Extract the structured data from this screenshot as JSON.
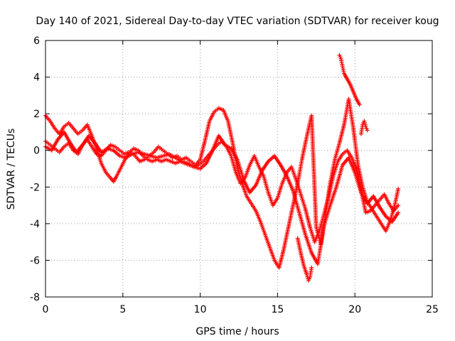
{
  "chart_data": {
    "type": "scatter",
    "title": "Day 140 of 2021, Sidereal Day-to-day VTEC variation (SDTVAR) for receiver koug",
    "xlabel": "GPS time / hours",
    "ylabel": "SDTVAR / TECUs",
    "xlim": [
      0,
      25
    ],
    "ylim": [
      -8,
      6
    ],
    "xticks": [
      0,
      5,
      10,
      15,
      20,
      25
    ],
    "yticks": [
      -8,
      -6,
      -4,
      -2,
      0,
      2,
      4,
      6
    ],
    "grid": true,
    "marker": "+",
    "color": "#ff0000",
    "series": [
      {
        "x": [
          0.0,
          0.3,
          0.6,
          0.9,
          1.2,
          1.5,
          1.8,
          2.1,
          2.4,
          2.7,
          3.0,
          3.3,
          3.6,
          3.9,
          4.2,
          4.4,
          4.6,
          4.9,
          5.2,
          5.5,
          5.8,
          6.1,
          6.4,
          6.7,
          7.0,
          7.3,
          7.6,
          7.9,
          8.2,
          8.5,
          8.8,
          9.1,
          9.4,
          9.7,
          10.0,
          10.3,
          10.6,
          10.9,
          11.2,
          11.5,
          11.8,
          12.1,
          12.4,
          12.7,
          13.0,
          13.3,
          13.6,
          13.9,
          14.2,
          14.5,
          14.8,
          15.1,
          15.4,
          15.7,
          16.0,
          16.3,
          16.6,
          16.9,
          17.2,
          17.5,
          17.8,
          18.1,
          18.4,
          18.7,
          19.0,
          19.3,
          19.6,
          19.9,
          20.2,
          20.5,
          20.8,
          21.1,
          21.4,
          21.7,
          22.0,
          22.3,
          22.6,
          22.8
        ],
        "y": [
          1.9,
          1.6,
          1.2,
          0.9,
          1.3,
          1.5,
          1.2,
          0.9,
          1.1,
          1.4,
          0.8,
          0.1,
          -0.7,
          -1.2,
          -1.5,
          -1.7,
          -1.4,
          -0.9,
          -0.4,
          -0.1,
          -0.3,
          -0.6,
          -0.5,
          -0.3,
          -0.1,
          0.2,
          0.0,
          -0.2,
          -0.4,
          -0.3,
          -0.5,
          -0.4,
          -0.6,
          -0.8,
          -0.5,
          0.5,
          1.6,
          2.1,
          2.3,
          2.2,
          1.6,
          0.4,
          -0.9,
          -1.8,
          -2.5,
          -2.9,
          -3.3,
          -3.9,
          -4.6,
          -5.3,
          -6.0,
          -6.4,
          -5.4,
          -4.2,
          -3.0,
          -1.8,
          -0.4,
          0.8,
          1.9,
          -4.2,
          -5.1,
          -3.5,
          -1.8,
          -0.5,
          0.4,
          1.4,
          2.8,
          1.2,
          -0.8,
          -2.0,
          -2.8,
          -3.2,
          -3.6,
          -4.0,
          -4.4,
          -3.8,
          -2.9,
          -2.1
        ]
      },
      {
        "x": [
          0.0,
          0.3,
          0.6,
          0.9,
          1.2,
          1.5,
          1.8,
          2.1,
          2.4,
          2.7,
          3.0,
          3.3,
          3.6,
          3.9,
          4.2,
          4.5,
          4.8,
          5.1,
          5.4,
          5.7,
          6.0,
          6.3,
          6.6,
          6.9,
          7.2,
          7.5,
          7.8,
          8.1,
          8.4,
          8.7,
          9.0,
          9.3,
          9.6,
          9.9,
          10.2,
          10.5,
          10.8,
          11.1,
          11.4,
          11.7,
          12.0,
          12.3,
          12.6,
          12.9,
          13.2,
          13.5,
          13.8,
          14.1,
          14.4,
          14.7,
          15.0,
          15.3,
          15.6,
          15.9,
          16.2,
          16.5,
          16.8,
          17.1,
          17.4,
          17.7,
          18.0,
          18.3,
          18.6,
          18.9,
          19.2,
          19.5,
          19.8,
          20.1,
          20.4,
          20.7,
          21.0,
          21.3,
          21.6,
          21.9,
          22.2,
          22.5,
          22.8
        ],
        "y": [
          0.5,
          0.3,
          0.1,
          -0.1,
          0.2,
          0.4,
          0.0,
          -0.2,
          0.3,
          0.6,
          0.2,
          -0.2,
          -0.3,
          0.0,
          0.3,
          0.2,
          0.0,
          -0.2,
          -0.1,
          0.1,
          0.0,
          -0.3,
          -0.5,
          -0.6,
          -0.5,
          -0.6,
          -0.5,
          -0.6,
          -0.7,
          -0.6,
          -0.7,
          -0.8,
          -0.9,
          -0.8,
          -0.6,
          -0.3,
          0.0,
          0.3,
          0.5,
          0.2,
          -0.3,
          -1.2,
          -1.8,
          -1.5,
          -0.8,
          -0.3,
          -0.9,
          -1.4,
          -2.3,
          -3.0,
          -2.6,
          -1.8,
          -1.2,
          -0.9,
          -1.6,
          -2.4,
          -3.2,
          -4.2,
          -5.0,
          -4.4,
          -3.5,
          -2.5,
          -1.4,
          -0.6,
          -0.2,
          0.0,
          -0.4,
          -1.0,
          -2.2,
          -3.4,
          -3.3,
          -3.0,
          -2.7,
          -2.4,
          -2.9,
          -3.3,
          -3.0
        ]
      },
      {
        "x": [
          0.0,
          0.4,
          0.8,
          1.2,
          1.6,
          2.0,
          2.4,
          2.8,
          3.2,
          3.6,
          4.0,
          4.4,
          4.8,
          5.2,
          5.6,
          6.0,
          6.4,
          6.8,
          7.2,
          7.6,
          8.0,
          8.4,
          8.8,
          9.2,
          9.6,
          10.0,
          10.4,
          10.8,
          11.2,
          11.6,
          12.0,
          12.4,
          12.8,
          13.2,
          13.6,
          14.0,
          14.4,
          14.8,
          15.2,
          15.6,
          16.0,
          16.4,
          16.8,
          17.2,
          17.6,
          18.0,
          18.4,
          18.8,
          19.2,
          19.6,
          20.0,
          20.4,
          20.8,
          21.2,
          21.6,
          22.0,
          22.4,
          22.8
        ],
        "y": [
          0.2,
          0.0,
          0.6,
          1.0,
          0.4,
          -0.1,
          0.3,
          0.8,
          0.4,
          -0.1,
          0.1,
          0.0,
          -0.3,
          -0.4,
          -0.2,
          -0.1,
          -0.2,
          -0.3,
          -0.4,
          -0.3,
          -0.2,
          -0.4,
          -0.6,
          -0.7,
          -0.9,
          -1.0,
          -0.7,
          0.0,
          0.8,
          0.3,
          0.1,
          -0.5,
          -1.6,
          -2.3,
          -1.9,
          -1.1,
          -0.6,
          -0.3,
          -0.8,
          -1.4,
          -2.2,
          -3.4,
          -4.6,
          -5.6,
          -6.2,
          -4.1,
          -3.0,
          -2.0,
          -0.8,
          -0.4,
          -1.2,
          -2.3,
          -2.9,
          -2.5,
          -3.1,
          -3.6,
          -3.9,
          -3.4
        ]
      },
      {
        "x": [
          19.0,
          19.1,
          19.2,
          19.3,
          19.5,
          19.7,
          19.9,
          20.1,
          20.3
        ],
        "y": [
          5.2,
          5.0,
          4.6,
          4.2,
          3.9,
          3.6,
          3.2,
          2.8,
          2.5
        ]
      },
      {
        "x": [
          20.4,
          20.5,
          20.6,
          20.7,
          20.8
        ],
        "y": [
          0.9,
          1.4,
          1.6,
          1.3,
          1.1
        ]
      },
      {
        "x": [
          16.3,
          16.5,
          16.7,
          16.9,
          17.0,
          17.1,
          17.2
        ],
        "y": [
          -4.8,
          -5.6,
          -6.3,
          -6.8,
          -7.1,
          -6.9,
          -6.4
        ]
      }
    ]
  }
}
